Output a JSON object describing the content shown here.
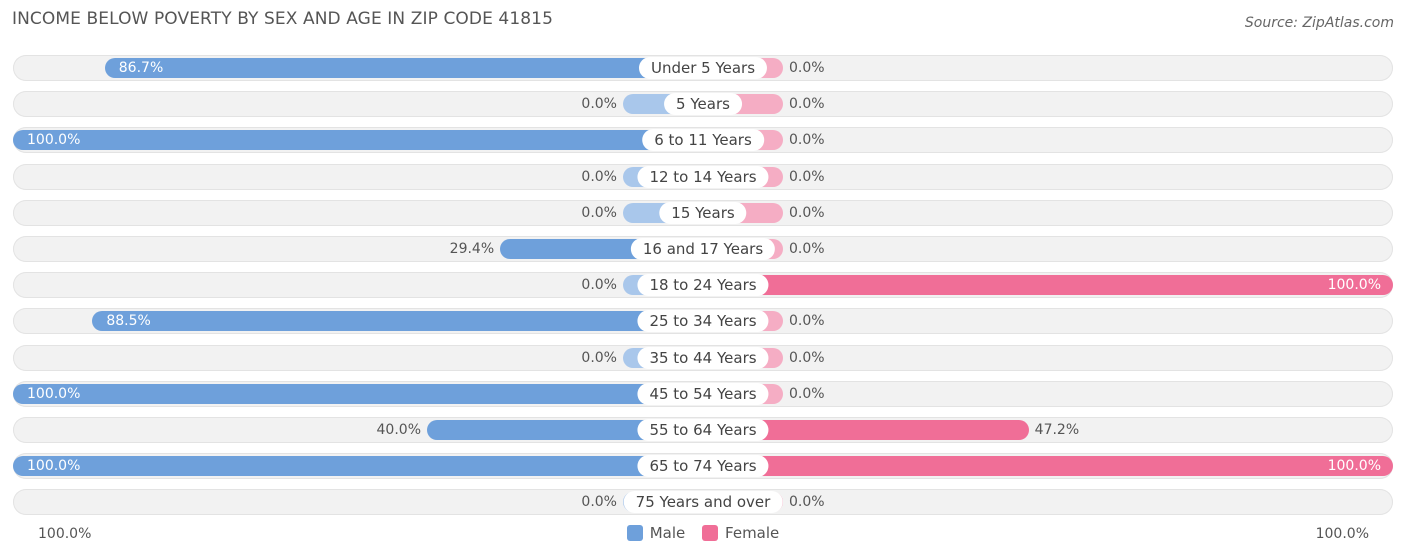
{
  "header": {
    "title": "INCOME BELOW POVERTY BY SEX AND AGE IN ZIP CODE 41815",
    "source": "Source: ZipAtlas.com"
  },
  "axis": {
    "left_label": "100.0%",
    "right_label": "100.0%"
  },
  "legend": [
    {
      "name": "Male",
      "color": "#6ea0db"
    },
    {
      "name": "Female",
      "color": "#f06e97"
    }
  ],
  "chart_data": {
    "type": "bar",
    "orientation": "horizontal-diverging",
    "categories": [
      "Under 5 Years",
      "5 Years",
      "6 to 11 Years",
      "12 to 14 Years",
      "15 Years",
      "16 and 17 Years",
      "18 to 24 Years",
      "25 to 34 Years",
      "35 to 44 Years",
      "45 to 54 Years",
      "55 to 64 Years",
      "65 to 74 Years",
      "75 Years and over"
    ],
    "series": [
      {
        "name": "Male",
        "values": [
          86.7,
          0.0,
          100.0,
          0.0,
          0.0,
          29.4,
          0.0,
          88.5,
          0.0,
          100.0,
          40.0,
          100.0,
          0.0
        ],
        "labels": [
          "86.7%",
          "0.0%",
          "100.0%",
          "0.0%",
          "0.0%",
          "29.4%",
          "0.0%",
          "88.5%",
          "0.0%",
          "100.0%",
          "40.0%",
          "100.0%",
          "0.0%"
        ]
      },
      {
        "name": "Female",
        "values": [
          0.0,
          0.0,
          0.0,
          0.0,
          0.0,
          0.0,
          100.0,
          0.0,
          0.0,
          0.0,
          47.2,
          100.0,
          0.0
        ],
        "labels": [
          "0.0%",
          "0.0%",
          "0.0%",
          "0.0%",
          "0.0%",
          "0.0%",
          "100.0%",
          "0.0%",
          "0.0%",
          "0.0%",
          "47.2%",
          "100.0%",
          "0.0%"
        ]
      }
    ],
    "xlim": [
      0,
      100
    ],
    "legend_position": "bottom-center",
    "grid": false
  }
}
